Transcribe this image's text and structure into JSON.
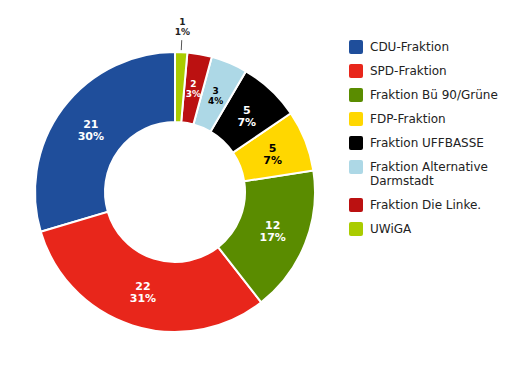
{
  "chart_data": {
    "type": "pie",
    "categories": [
      "CDU-Fraktion",
      "SPD-Fraktion",
      "Fraktion Bü 90/Grüne",
      "FDP-Fraktion",
      "Fraktion UFFBASSE",
      "Fraktion Alternative\nDarmstadt",
      "Fraktion Die Linke.",
      "UWiGA"
    ],
    "values": [
      21,
      22,
      12,
      5,
      5,
      3,
      2,
      1
    ],
    "percents": [
      30,
      31,
      17,
      7,
      7,
      4,
      3,
      1
    ],
    "percent_labels": [
      "30%",
      "31%",
      "17%",
      "7%",
      "7%",
      "4%",
      "3%",
      "1%"
    ],
    "colors": [
      "#1F4E9B",
      "#E8261B",
      "#5A8C00",
      "#FFD700",
      "#000000",
      "#ADD8E6",
      "#BB1111",
      "#AACC00"
    ],
    "label_colors": [
      "white",
      "white",
      "white",
      "black",
      "white",
      "black",
      "white",
      "black"
    ],
    "data_labels": true,
    "legend": "right"
  }
}
